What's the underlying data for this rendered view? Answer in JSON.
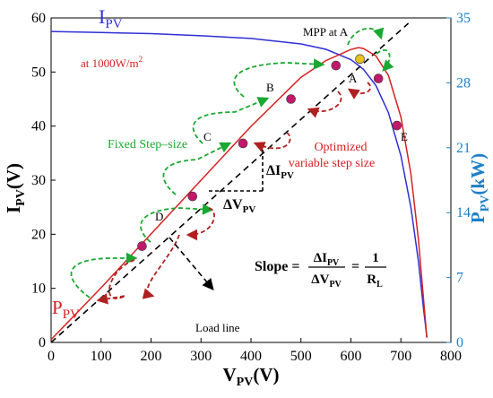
{
  "chart_data": {
    "type": "line",
    "x": {
      "label_main": "V",
      "label_sub": "PV",
      "label_unit": "(V)",
      "ticks": [
        "0",
        "100",
        "200",
        "300",
        "400",
        "500",
        "600",
        "700",
        "800"
      ],
      "range": [
        0,
        800
      ]
    },
    "y_left": {
      "label_main": "I",
      "label_sub": "PV",
      "label_unit": "(V)",
      "ticks": [
        "0",
        "10",
        "20",
        "30",
        "40",
        "50",
        "60"
      ],
      "range": [
        0,
        60
      ]
    },
    "y_right": {
      "label_main": "P",
      "label_sub": "PV",
      "label_unit": "(kW)",
      "ticks": [
        "0",
        "7",
        "14",
        "21",
        "28",
        "35"
      ],
      "range": [
        0,
        35
      ]
    },
    "series": [
      {
        "name": "I_PV",
        "color": "#2f2fd6",
        "axis": "left",
        "points": [
          [
            0,
            57.5
          ],
          [
            100,
            57.3
          ],
          [
            200,
            57.1
          ],
          [
            300,
            56.7
          ],
          [
            400,
            56.2
          ],
          [
            500,
            55.2
          ],
          [
            550,
            54.2
          ],
          [
            600,
            52.3
          ],
          [
            625,
            50.5
          ],
          [
            650,
            47.5
          ],
          [
            675,
            42.5
          ],
          [
            700,
            34.5
          ],
          [
            720,
            25.0
          ],
          [
            735,
            15.0
          ],
          [
            745,
            6.5
          ],
          [
            752,
            1.0
          ]
        ]
      },
      {
        "name": "P_PV",
        "color": "#d62020",
        "axis": "right",
        "points": [
          [
            0,
            0.3
          ],
          [
            100,
            5.9
          ],
          [
            200,
            11.7
          ],
          [
            300,
            17.5
          ],
          [
            400,
            23.3
          ],
          [
            500,
            28.6
          ],
          [
            550,
            30.4
          ],
          [
            600,
            31.6
          ],
          [
            615,
            31.8
          ],
          [
            625,
            31.7
          ],
          [
            650,
            30.9
          ],
          [
            675,
            28.8
          ],
          [
            700,
            24.3
          ],
          [
            720,
            18.2
          ],
          [
            735,
            11.1
          ],
          [
            745,
            4.9
          ],
          [
            752,
            0.5
          ]
        ]
      }
    ],
    "load_line": {
      "color": "#000000",
      "style": "dashed",
      "from": [
        0,
        0
      ],
      "to": [
        715,
        59
      ]
    },
    "points": [
      {
        "label": "",
        "x": 182,
        "y": 17.8,
        "color": "#c2186b"
      },
      {
        "label": "",
        "x": 283,
        "y": 27.0,
        "color": "#c2186b"
      },
      {
        "label": "",
        "x": 384,
        "y": 36.8,
        "color": "#c2186b"
      },
      {
        "label": "",
        "x": 480,
        "y": 45.0,
        "color": "#c2186b"
      },
      {
        "label": "",
        "x": 570,
        "y": 51.2,
        "color": "#c2186b"
      },
      {
        "label": "",
        "x": 655,
        "y": 48.8,
        "color": "#c2186b"
      },
      {
        "label": "",
        "x": 692,
        "y": 40.1,
        "color": "#c2186b"
      },
      {
        "label": "",
        "x": 618,
        "y": 52.4,
        "color": "#e8c020"
      }
    ],
    "annotations": {
      "ipv_label_main": "I",
      "ipv_label_sub": "PV",
      "ppv_label_main": "P",
      "ppv_label_sub": "PV",
      "irradiance": "at 1000W/m",
      "irradiance_sup": "2",
      "mpp": "MPP at A",
      "point_A": "A",
      "point_B": "B",
      "point_C": "C",
      "point_D": "D",
      "point_E": "E",
      "fixed_step": "Fixed Step–size",
      "optimized_1": "Optimized",
      "optimized_2": "variable step size",
      "delta_i_main": "ΔI",
      "delta_i_sub": "PV",
      "delta_v_main": "ΔV",
      "delta_v_sub": "PV",
      "slope_label": "Slope =",
      "slope_num_main": "ΔI",
      "slope_num_sub": "PV",
      "slope_den_main": "ΔV",
      "slope_den_sub": "PV",
      "slope_eq": "=",
      "slope_one": "1",
      "slope_rl_main": "R",
      "slope_rl_sub": "L",
      "load_line": "Load line"
    }
  }
}
